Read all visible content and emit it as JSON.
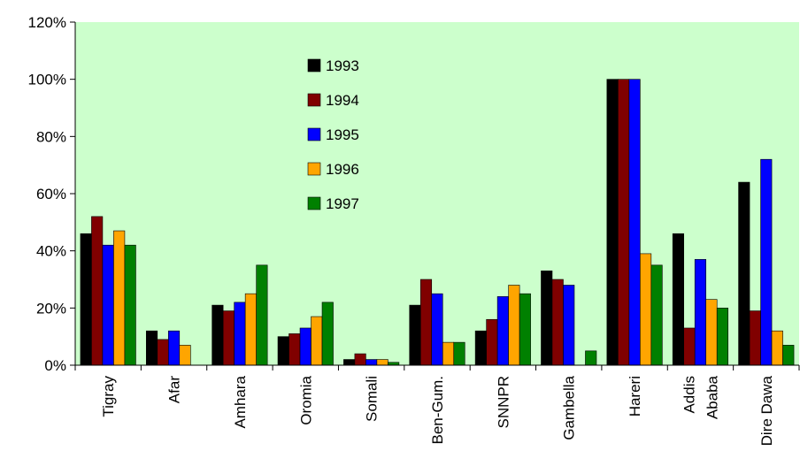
{
  "chart_data": {
    "type": "bar",
    "categories": [
      "Tigray",
      "Afar",
      "Amhara",
      "Oromia",
      "Somali",
      "Ben-Gum.",
      "SNNPR",
      "Gambella",
      "Hareri",
      "Addis\nAbaba",
      "Dire Dawa"
    ],
    "series": [
      {
        "name": "1993",
        "color": "#000000",
        "values": [
          46,
          12,
          21,
          10,
          2,
          21,
          12,
          33,
          100,
          46,
          64
        ]
      },
      {
        "name": "1994",
        "color": "#800000",
        "values": [
          52,
          9,
          19,
          11,
          4,
          30,
          16,
          30,
          100,
          13,
          19
        ]
      },
      {
        "name": "1995",
        "color": "#0000ff",
        "values": [
          42,
          12,
          22,
          13,
          2,
          25,
          24,
          28,
          100,
          37,
          72
        ]
      },
      {
        "name": "1996",
        "color": "#ffa500",
        "values": [
          47,
          7,
          25,
          17,
          2,
          8,
          28,
          0,
          39,
          23,
          12
        ]
      },
      {
        "name": "1997",
        "color": "#008000",
        "values": [
          42,
          0,
          35,
          22,
          1,
          8,
          25,
          5,
          35,
          20,
          7
        ]
      }
    ],
    "ylim": [
      0,
      120
    ],
    "yticks": [
      "0%",
      "20%",
      "40%",
      "60%",
      "80%",
      "100%",
      "120%"
    ],
    "ytick_values": [
      0,
      20,
      40,
      60,
      80,
      100,
      120
    ],
    "grid": false,
    "legend_position": "top-center",
    "plot_background": "#ccffcc"
  }
}
